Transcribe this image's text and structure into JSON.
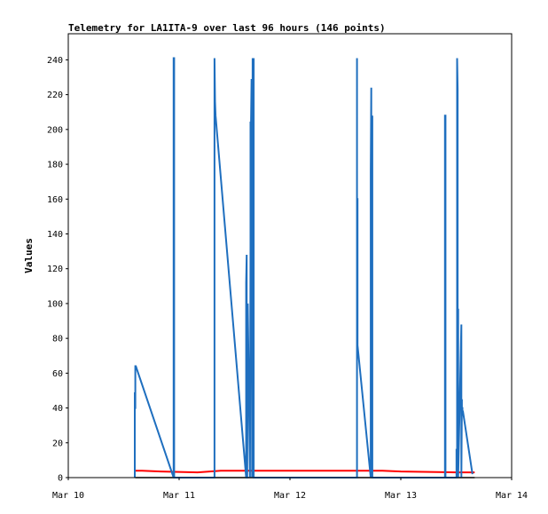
{
  "chart_data": {
    "type": "line",
    "title": "Telemetry for LA1ITA-9 over last 96 hours (146 points)",
    "xlabel": "",
    "ylabel": "Values",
    "x_ticks": [
      "Mar 10",
      "Mar 11",
      "Mar 12",
      "Mar 13",
      "Mar 14"
    ],
    "y_ticks": [
      0,
      20,
      40,
      60,
      80,
      100,
      120,
      140,
      160,
      180,
      200,
      220,
      240
    ],
    "xlim": [
      "Mar 10 00:00",
      "Mar 14 00:00"
    ],
    "ylim": [
      0,
      255
    ],
    "grid": false,
    "legend": "none",
    "series": [
      {
        "color": "#ff0000",
        "x": [
          "Mar 10 14:30",
          "Mar 10 16:00",
          "Mar 10 20:00",
          "Mar 11 04:00",
          "Mar 11 09:00",
          "Mar 11 16:00",
          "Mar 12 16:00",
          "Mar 12 20:00",
          "Mar 13 00:00",
          "Mar 13 12:00",
          "Mar 13 16:00"
        ],
        "y": [
          4,
          4,
          3.5,
          3,
          4,
          4,
          4,
          4,
          3.5,
          3,
          3
        ]
      },
      {
        "color": "#000000",
        "x": [
          "Mar 10 14:30",
          "Mar 13 16:00"
        ],
        "y": [
          0,
          0
        ]
      },
      {
        "color": "#1f6fbf",
        "x": [
          "Mar 10 14:24",
          "Mar 10 14:24",
          "Mar 10 14:24",
          "Mar 10 14:31",
          "Mar 10 14:31",
          "Mar 10 14:38",
          "Mar 10 14:38",
          "Mar 10 22:48",
          "Mar 10 22:48",
          "Mar 10 22:55",
          "Mar 10 22:55",
          "Mar 11 07:40",
          "Mar 11 07:40",
          "Mar 11 07:47",
          "Mar 11 07:54",
          "Mar 11 07:54",
          "Mar 11 14:31",
          "Mar 11 14:31",
          "Mar 11 14:38",
          "Mar 11 14:38",
          "Mar 11 14:45",
          "Mar 11 14:52",
          "Mar 11 15:20",
          "Mar 11 15:27",
          "Mar 11 15:27",
          "Mar 11 15:34",
          "Mar 11 15:41",
          "Mar 11 15:48",
          "Mar 11 15:55",
          "Mar 11 15:55",
          "Mar 11 16:02",
          "Mar 11 16:02",
          "Mar 11 16:02",
          "Mar 11 16:09",
          "Mar 11 16:09",
          "Mar 11 16:09",
          "Mar 12 14:31",
          "Mar 12 14:31",
          "Mar 12 14:31",
          "Mar 12 14:38",
          "Mar 12 14:38",
          "Mar 12 17:29",
          "Mar 12 17:29",
          "Mar 12 17:36",
          "Mar 12 17:36",
          "Mar 12 17:43",
          "Mar 12 17:43",
          "Mar 12 17:50",
          "Mar 12 17:50",
          "Mar 12 17:57",
          "Mar 12 17:57",
          "Mar 13 09:34",
          "Mar 13 09:34",
          "Mar 13 09:41",
          "Mar 13 09:41",
          "Mar 13 12:04",
          "Mar 13 12:04",
          "Mar 13 12:11",
          "Mar 13 12:11",
          "Mar 13 12:18",
          "Mar 13 12:18",
          "Mar 13 12:25",
          "Mar 13 12:25",
          "Mar 13 13:07",
          "Mar 13 13:07",
          "Mar 13 13:14",
          "Mar 13 13:14",
          "Mar 13 13:21",
          "Mar 13 13:21",
          "Mar 13 13:28",
          "Mar 13 15:31",
          "Mar 13 15:31"
        ],
        "y": [
          0,
          49,
          40,
          40,
          64,
          64,
          64,
          0,
          241,
          241,
          0,
          0,
          241,
          216,
          208,
          208,
          0,
          112,
          128,
          0,
          0,
          100,
          0,
          133,
          204,
          204,
          229,
          0,
          241,
          0,
          144,
          0,
          0,
          241,
          241,
          0,
          0,
          241,
          160,
          160,
          76,
          0,
          176,
          224,
          0,
          112,
          0,
          208,
          0,
          0,
          0,
          0,
          208,
          208,
          0,
          0,
          16,
          16,
          241,
          223,
          0,
          97,
          0,
          88,
          0,
          45,
          40,
          40,
          38,
          38,
          2,
          2
        ]
      }
    ]
  }
}
